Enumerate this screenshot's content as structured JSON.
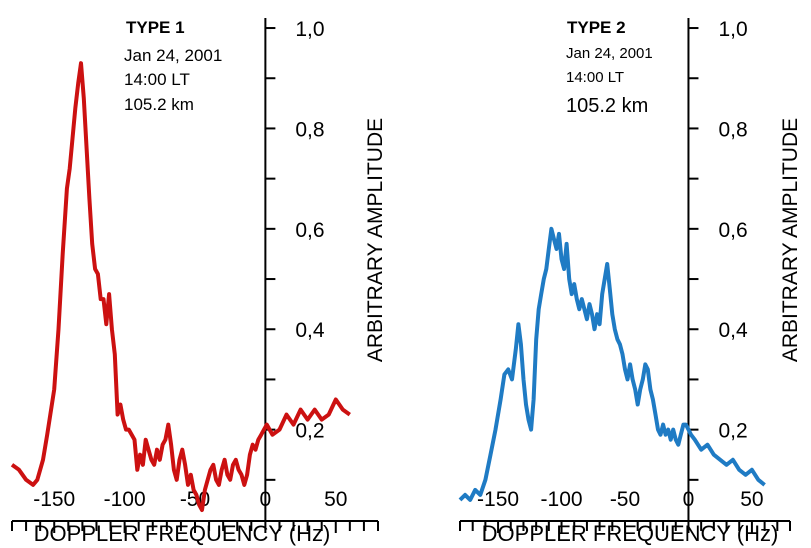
{
  "chart_data": [
    {
      "type": "line",
      "annotation": [
        "TYPE 1",
        "Jan 24, 2001",
        "14:00 LT",
        "105.2 km"
      ],
      "xlabel": "DOPPLER FREQUENCY (Hz)",
      "ylabel": "ARBITRARY AMPLITUDE",
      "xlim": [
        -180,
        80
      ],
      "ylim": [
        0.02,
        1.02
      ],
      "xticks": [
        -150,
        -100,
        -50,
        0,
        50
      ],
      "xtick_labels": [
        "-150",
        "-100",
        "-50",
        "0",
        "50"
      ],
      "yticks": [
        0.2,
        0.4,
        0.6,
        0.8,
        1.0
      ],
      "ytick_labels": [
        "0,2",
        "0,4",
        "0,6",
        "0,8",
        "1,0"
      ],
      "grid": false,
      "series": [
        {
          "color": "#cc1111",
          "x": [
            -180,
            -175,
            -170,
            -165,
            -162,
            -158,
            -155,
            -150,
            -147,
            -144,
            -141,
            -139,
            -137,
            -135,
            -133,
            -131,
            -129,
            -127,
            -125,
            -123,
            -121,
            -119,
            -117,
            -115,
            -113,
            -111,
            -109,
            -107,
            -105,
            -103,
            -101,
            -99,
            -97,
            -95,
            -93,
            -91,
            -89,
            -87,
            -85,
            -83,
            -81,
            -79,
            -77,
            -75,
            -73,
            -71,
            -69,
            -67,
            -65,
            -63,
            -61,
            -59,
            -57,
            -55,
            -53,
            -51,
            -49,
            -47,
            -45,
            -43,
            -41,
            -39,
            -37,
            -35,
            -33,
            -31,
            -29,
            -27,
            -25,
            -23,
            -21,
            -19,
            -17,
            -15,
            -13,
            -11,
            -9,
            -7,
            -5,
            -3,
            -1,
            1,
            3,
            5,
            10,
            15,
            20,
            25,
            30,
            35,
            40,
            45,
            50,
            55,
            60
          ],
          "y": [
            0.13,
            0.12,
            0.1,
            0.09,
            0.1,
            0.14,
            0.19,
            0.28,
            0.4,
            0.55,
            0.68,
            0.72,
            0.78,
            0.84,
            0.89,
            0.93,
            0.86,
            0.76,
            0.66,
            0.57,
            0.52,
            0.51,
            0.46,
            0.46,
            0.41,
            0.47,
            0.4,
            0.35,
            0.23,
            0.25,
            0.22,
            0.2,
            0.2,
            0.19,
            0.18,
            0.12,
            0.15,
            0.13,
            0.18,
            0.16,
            0.14,
            0.13,
            0.16,
            0.14,
            0.17,
            0.18,
            0.21,
            0.17,
            0.12,
            0.1,
            0.14,
            0.16,
            0.13,
            0.09,
            0.11,
            0.08,
            0.07,
            0.05,
            0.04,
            0.08,
            0.1,
            0.12,
            0.13,
            0.1,
            0.09,
            0.12,
            0.14,
            0.11,
            0.1,
            0.13,
            0.14,
            0.12,
            0.11,
            0.09,
            0.11,
            0.15,
            0.17,
            0.16,
            0.18,
            0.19,
            0.2,
            0.21,
            0.2,
            0.19,
            0.2,
            0.23,
            0.21,
            0.24,
            0.22,
            0.24,
            0.22,
            0.23,
            0.26,
            0.24,
            0.23
          ]
        }
      ]
    },
    {
      "type": "line",
      "annotation": [
        "TYPE 2",
        "Jan 24, 2001",
        "14:00 LT",
        "105.2 km"
      ],
      "xlabel": "DOPPLER FREQUENCY (Hz)",
      "ylabel": "ARBITRARY AMPLITUDE",
      "xlim": [
        -180,
        80
      ],
      "ylim": [
        0.02,
        1.02
      ],
      "xticks": [
        -150,
        -100,
        -50,
        0,
        50
      ],
      "xtick_labels": [
        "-150",
        "-100",
        "-50",
        "0",
        "50"
      ],
      "yticks": [
        0.2,
        0.4,
        0.6,
        0.8,
        1.0
      ],
      "ytick_labels": [
        "0,2",
        "0,4",
        "0,6",
        "0,8",
        "1,0"
      ],
      "grid": false,
      "series": [
        {
          "color": "#1f7bc4",
          "x": [
            -180,
            -176,
            -172,
            -168,
            -164,
            -160,
            -156,
            -152,
            -148,
            -145,
            -142,
            -139,
            -136,
            -134,
            -132,
            -130,
            -128,
            -126,
            -124,
            -122,
            -120,
            -118,
            -116,
            -114,
            -112,
            -110,
            -108,
            -106,
            -104,
            -102,
            -100,
            -98,
            -96,
            -94,
            -92,
            -90,
            -88,
            -86,
            -84,
            -82,
            -80,
            -78,
            -76,
            -74,
            -72,
            -70,
            -68,
            -66,
            -64,
            -62,
            -60,
            -58,
            -56,
            -54,
            -52,
            -50,
            -48,
            -46,
            -44,
            -42,
            -40,
            -38,
            -36,
            -34,
            -32,
            -30,
            -28,
            -26,
            -24,
            -22,
            -20,
            -18,
            -16,
            -14,
            -12,
            -10,
            -8,
            -6,
            -4,
            -2,
            0,
            2,
            5,
            10,
            15,
            20,
            25,
            30,
            35,
            40,
            45,
            50,
            55,
            60
          ],
          "y": [
            0.06,
            0.07,
            0.06,
            0.08,
            0.07,
            0.1,
            0.15,
            0.2,
            0.26,
            0.31,
            0.32,
            0.3,
            0.36,
            0.41,
            0.37,
            0.3,
            0.25,
            0.22,
            0.2,
            0.26,
            0.38,
            0.44,
            0.47,
            0.5,
            0.52,
            0.56,
            0.6,
            0.58,
            0.56,
            0.59,
            0.54,
            0.52,
            0.57,
            0.5,
            0.47,
            0.49,
            0.46,
            0.44,
            0.46,
            0.44,
            0.42,
            0.45,
            0.43,
            0.4,
            0.43,
            0.41,
            0.47,
            0.5,
            0.53,
            0.48,
            0.43,
            0.4,
            0.38,
            0.37,
            0.35,
            0.32,
            0.3,
            0.33,
            0.3,
            0.28,
            0.25,
            0.28,
            0.3,
            0.33,
            0.32,
            0.28,
            0.26,
            0.23,
            0.2,
            0.19,
            0.21,
            0.19,
            0.2,
            0.18,
            0.2,
            0.18,
            0.17,
            0.19,
            0.21,
            0.21,
            0.2,
            0.19,
            0.18,
            0.16,
            0.17,
            0.15,
            0.14,
            0.13,
            0.14,
            0.12,
            0.11,
            0.12,
            0.1,
            0.09
          ]
        }
      ]
    }
  ]
}
